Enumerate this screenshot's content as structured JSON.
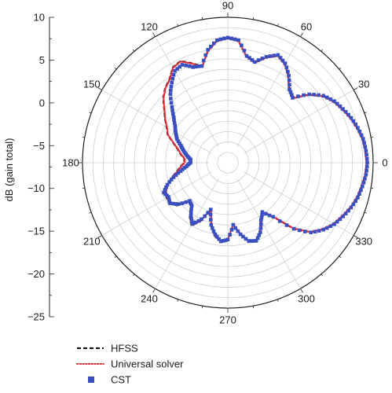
{
  "chart_data": {
    "type": "polar",
    "ylabel": "dB (gain total)",
    "r_ticks": [
      10,
      5,
      0,
      -5,
      -10,
      -15,
      -20,
      -25
    ],
    "r_range": [
      -25,
      10
    ],
    "angle_ticks": [
      0,
      30,
      60,
      90,
      120,
      150,
      180,
      210,
      240,
      270,
      300,
      330
    ],
    "grid": true,
    "legend_position": "bottom-left",
    "series": [
      {
        "name": "HFSS",
        "style": "dashed",
        "color": "#000000",
        "angles": [
          0,
          5,
          10,
          15,
          20,
          25,
          30,
          35,
          40,
          45,
          50,
          55,
          60,
          65,
          70,
          75,
          80,
          85,
          90,
          95,
          100,
          105,
          110,
          115,
          120,
          125,
          130,
          135,
          140,
          145,
          150,
          155,
          160,
          165,
          170,
          175,
          180,
          185,
          190,
          195,
          200,
          205,
          210,
          215,
          220,
          225,
          230,
          235,
          240,
          245,
          250,
          255,
          260,
          265,
          270,
          275,
          280,
          285,
          290,
          295,
          300,
          305,
          310,
          315,
          320,
          325,
          330,
          335,
          340,
          345,
          350,
          355
        ],
        "values": [
          8.5,
          8.3,
          8.0,
          7.3,
          6.5,
          5.5,
          4.5,
          3.0,
          0.5,
          -3.0,
          -2.0,
          0.5,
          2.5,
          3.5,
          2.0,
          0.0,
          1.0,
          4.5,
          5.0,
          4.5,
          2.5,
          -1.0,
          0.5,
          2.0,
          1.5,
          -0.5,
          -1.5,
          -3.0,
          -5.0,
          -6.5,
          -8.0,
          -9.0,
          -11.0,
          -12.5,
          -13.5,
          -14.5,
          -14.5,
          -13.5,
          -12.5,
          -11.0,
          -9.5,
          -8.5,
          -8.0,
          -8.0,
          -9.0,
          -12.0,
          -11.5,
          -9.0,
          -7.5,
          -9.5,
          -13.0,
          -9.5,
          -7.0,
          -6.0,
          -6.5,
          -10.0,
          -7.5,
          -5.5,
          -5.0,
          -6.5,
          -9.0,
          -10.5,
          -8.0,
          -2.5,
          1.0,
          3.0,
          4.5,
          5.5,
          6.5,
          7.3,
          7.8,
          8.3
        ]
      },
      {
        "name": "Universal solver",
        "style": "dotted",
        "color": "#e0303a",
        "angles": [
          0,
          5,
          10,
          15,
          20,
          25,
          30,
          35,
          40,
          45,
          50,
          55,
          60,
          65,
          70,
          75,
          80,
          85,
          90,
          95,
          100,
          105,
          110,
          115,
          120,
          125,
          130,
          135,
          140,
          145,
          150,
          155,
          160,
          165,
          170,
          175,
          180,
          185,
          190,
          195,
          200,
          205,
          210,
          215,
          220,
          225,
          230,
          235,
          240,
          245,
          250,
          255,
          260,
          265,
          270,
          275,
          280,
          285,
          290,
          295,
          300,
          305,
          310,
          315,
          320,
          325,
          330,
          335,
          340,
          345,
          350,
          355
        ],
        "values": [
          8.4,
          8.2,
          7.9,
          7.2,
          6.4,
          5.4,
          4.4,
          2.9,
          0.4,
          -3.1,
          -2.1,
          0.4,
          2.4,
          3.4,
          1.9,
          -0.1,
          0.9,
          4.4,
          4.9,
          4.4,
          2.4,
          -1.1,
          0.4,
          1.9,
          1.4,
          -0.6,
          -1.6,
          -3.1,
          -5.1,
          -6.6,
          -8.1,
          -9.1,
          -11.1,
          -12.6,
          -13.6,
          -14.6,
          -14.6,
          -13.6,
          -12.6,
          -11.1,
          -9.6,
          -8.6,
          -8.1,
          -8.1,
          -9.1,
          -12.1,
          -11.6,
          -9.1,
          -7.6,
          -9.6,
          -13.1,
          -9.6,
          -7.1,
          -6.1,
          -6.6,
          -10.1,
          -7.6,
          -5.6,
          -5.1,
          -6.6,
          -9.1,
          -10.6,
          -8.1,
          -2.6,
          0.9,
          2.9,
          4.4,
          5.4,
          6.4,
          7.2,
          7.7,
          8.2
        ]
      },
      {
        "name": "CST",
        "style": "squares",
        "color": "#3a4fc0",
        "angles": [
          0,
          5,
          10,
          15,
          20,
          25,
          30,
          35,
          40,
          45,
          50,
          55,
          60,
          65,
          70,
          75,
          80,
          85,
          90,
          95,
          100,
          105,
          110,
          115,
          120,
          125,
          130,
          135,
          140,
          145,
          150,
          155,
          160,
          165,
          170,
          175,
          180,
          185,
          190,
          195,
          200,
          205,
          210,
          215,
          220,
          225,
          230,
          235,
          240,
          245,
          250,
          255,
          260,
          265,
          270,
          275,
          280,
          285,
          290,
          295,
          300,
          305,
          310,
          315,
          320,
          325,
          330,
          335,
          340,
          345,
          350,
          355
        ],
        "values": [
          8.6,
          8.4,
          8.1,
          7.4,
          6.6,
          5.6,
          4.6,
          3.1,
          0.6,
          -2.9,
          -1.9,
          0.6,
          2.6,
          3.6,
          2.1,
          0.1,
          1.1,
          4.6,
          5.1,
          4.6,
          2.6,
          -0.9,
          -0.5,
          1.0,
          0.5,
          -1.5,
          -3.5,
          -6.0,
          -8.0,
          -9.5,
          -10.5,
          -11.5,
          -13.0,
          -14.0,
          -15.0,
          -16.0,
          -16.0,
          -15.0,
          -13.5,
          -11.5,
          -9.5,
          -8.0,
          -8.5,
          -8.0,
          -9.5,
          -12.0,
          -11.5,
          -9.5,
          -8.0,
          -10.0,
          -13.0,
          -9.5,
          -7.5,
          -6.0,
          -6.5,
          -10.0,
          -7.5,
          -5.5,
          -5.0,
          -6.5,
          -9.0,
          -10.5,
          -8.0,
          -2.5,
          1.1,
          3.1,
          4.6,
          5.6,
          6.6,
          7.4,
          7.9,
          8.4
        ]
      }
    ]
  }
}
